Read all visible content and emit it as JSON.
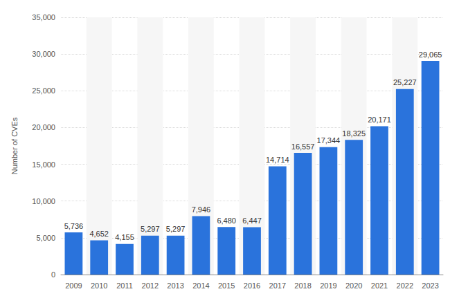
{
  "chart_data": {
    "type": "bar",
    "y_label": "Number of CVEs",
    "categories": [
      "2009",
      "2010",
      "2011",
      "2012",
      "2013",
      "2014",
      "2015",
      "2016",
      "2017",
      "2018",
      "2019",
      "2020",
      "2021",
      "2022",
      "2023"
    ],
    "values": [
      5736,
      4652,
      4155,
      5297,
      5297,
      7946,
      6480,
      6447,
      14714,
      16557,
      17344,
      18325,
      20171,
      25227,
      29065
    ],
    "value_labels": [
      "5,736",
      "4,652",
      "4,155",
      "5,297",
      "5,297",
      "7,946",
      "6,480",
      "6,447",
      "14,714",
      "16,557",
      "17,344",
      "18,325",
      "20,171",
      "25,227",
      "29,065"
    ],
    "color": "#2a73dc",
    "ylim": [
      0,
      35000
    ],
    "yticks": [
      0,
      {
        "value": 5000,
        "label": "5,000"
      },
      {
        "value": 10000,
        "label": "10,000"
      },
      {
        "value": 15000,
        "label": "15,000"
      },
      {
        "value": 20000,
        "label": "20,000"
      },
      {
        "value": 25000,
        "label": "25,000"
      },
      {
        "value": 30000,
        "label": "30,000"
      },
      {
        "value": 35000,
        "label": "35,000"
      }
    ],
    "grid": true,
    "data_labels": true
  }
}
